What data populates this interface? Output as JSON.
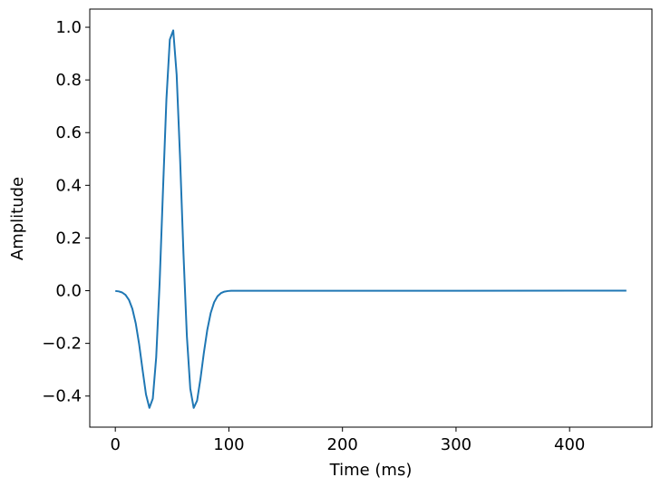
{
  "chart_data": {
    "type": "line",
    "x_label": "Time (ms)",
    "y_label": "Amplitude",
    "color": "#1f77b4",
    "x": [
      0,
      3,
      6,
      9,
      12,
      15,
      18,
      21,
      24,
      27,
      30,
      33,
      36,
      39,
      42,
      45,
      48,
      51,
      54,
      57,
      60,
      63,
      66,
      69,
      72,
      75,
      78,
      81,
      84,
      87,
      90,
      93,
      96,
      99,
      102,
      450
    ],
    "values": [
      -0.001,
      -0.0027,
      -0.0068,
      -0.0161,
      -0.0348,
      -0.0688,
      -0.1243,
      -0.2037,
      -0.3008,
      -0.3937,
      -0.445,
      -0.4096,
      -0.2527,
      0.0277,
      0.3842,
      0.7272,
      0.9532,
      0.9882,
      0.8202,
      0.5051,
      0.1418,
      -0.1716,
      -0.3718,
      -0.445,
      -0.4176,
      -0.3337,
      -0.235,
      -0.148,
      -0.0847,
      -0.044,
      -0.021,
      -0.0092,
      -0.0037,
      -0.0014,
      -0.0005,
      0
    ],
    "xlim": [
      -22.5,
      472.5
    ],
    "ylim": [
      -0.518,
      1.069
    ],
    "xticks": [
      0,
      100,
      200,
      300,
      400
    ],
    "yticks": [
      {
        "value": -0.4,
        "label": "−0.4"
      },
      {
        "value": -0.2,
        "label": "−0.2"
      },
      {
        "value": 0,
        "label": "0.0"
      },
      {
        "value": 0.2,
        "label": "0.2"
      },
      {
        "value": 0.4,
        "label": "0.4"
      },
      {
        "value": 0.6,
        "label": "0.6"
      },
      {
        "value": 0.8,
        "label": "0.8"
      },
      {
        "value": 1,
        "label": "1.0"
      }
    ]
  }
}
